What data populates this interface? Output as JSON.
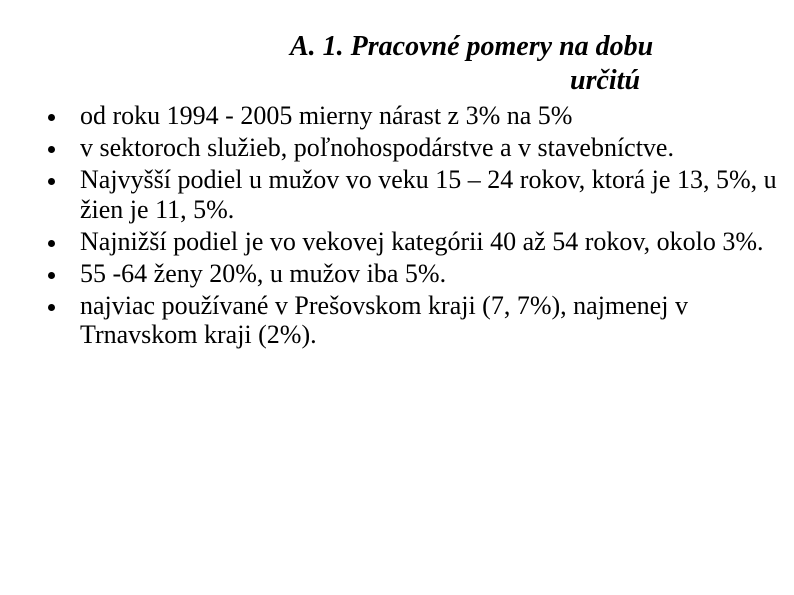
{
  "title": {
    "line1": "A. 1. Pracovné pomery na dobu",
    "line2": "určitú"
  },
  "bullets": [
    "od roku 1994 - 2005 mierny nárast z 3% na 5%",
    "v sektoroch služieb, poľnohospodárstve a v stavebníctve.",
    "Najvyšší podiel u mužov vo veku 15 – 24 rokov, ktorá je 13, 5%, u žien je 11, 5%.",
    "Najnižší podiel je vo vekovej kategórii 40 až 54 rokov, okolo 3%.",
    "55 -64 ženy 20%, u mužov iba 5%.",
    "najviac používané v Prešovskom kraji (7, 7%), najmenej v Trnavskom kraji (2%)."
  ],
  "styling": {
    "background_color": "#ffffff",
    "text_color": "#000000",
    "font_family": "Times New Roman",
    "title_fontsize": 28,
    "title_fontweight": "bold",
    "title_fontstyle": "italic",
    "body_fontsize": 26,
    "bullet_color": "#000000",
    "bullet_size": 7
  }
}
